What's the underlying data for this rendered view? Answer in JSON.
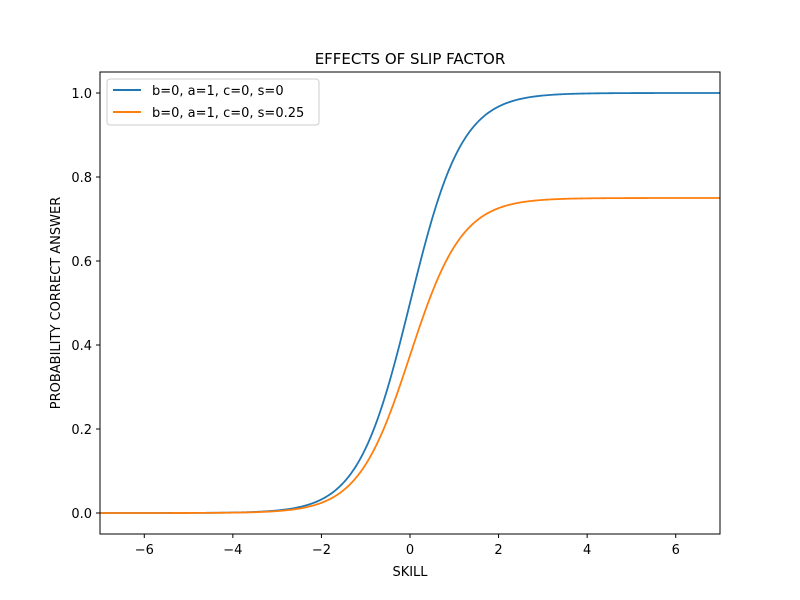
{
  "chart_data": {
    "type": "line",
    "title": "EFFECTS OF SLIP FACTOR",
    "xlabel": "SKILL",
    "ylabel": "PROBABILITY CORRECT ANSWER",
    "xlim": [
      -7,
      7
    ],
    "ylim": [
      -0.05,
      1.05
    ],
    "xticks": [
      -6,
      -4,
      -2,
      0,
      2,
      4,
      6
    ],
    "yticks": [
      0.0,
      0.2,
      0.4,
      0.6,
      0.8,
      1.0
    ],
    "xtick_labels": [
      "−6",
      "−4",
      "−2",
      "0",
      "2",
      "4",
      "6"
    ],
    "ytick_labels": [
      "0.0",
      "0.2",
      "0.4",
      "0.6",
      "0.8",
      "1.0"
    ],
    "grid": false,
    "legend_position": "upper-left",
    "model": "logistic, p = c + (1 - s - c) / (1 + exp(-1.7 a (x - b)))",
    "series": [
      {
        "name": "b=0, a=1, c=0, s=0",
        "color": "#1f77b4",
        "b": 0,
        "a": 1,
        "c": 0,
        "s": 0,
        "x": [
          -7,
          -6,
          -5,
          -4,
          -3,
          -2,
          -1.5,
          -1,
          -0.5,
          0,
          0.5,
          1,
          1.5,
          2,
          3,
          4,
          5,
          6,
          7
        ],
        "y": [
          0.0,
          0.0,
          0.0,
          0.001,
          0.006,
          0.032,
          0.072,
          0.154,
          0.3,
          0.5,
          0.7,
          0.846,
          0.928,
          0.968,
          0.994,
          0.999,
          1.0,
          1.0,
          1.0
        ]
      },
      {
        "name": "b=0, a=1, c=0, s=0.25",
        "color": "#ff7f0e",
        "b": 0,
        "a": 1,
        "c": 0,
        "s": 0.25,
        "x": [
          -7,
          -6,
          -5,
          -4,
          -3,
          -2,
          -1.5,
          -1,
          -0.5,
          0,
          0.5,
          1,
          1.5,
          2,
          3,
          4,
          5,
          6,
          7
        ],
        "y": [
          0.0,
          0.0,
          0.0,
          0.001,
          0.004,
          0.024,
          0.054,
          0.115,
          0.225,
          0.375,
          0.525,
          0.635,
          0.696,
          0.726,
          0.746,
          0.749,
          0.75,
          0.75,
          0.75
        ]
      }
    ]
  }
}
